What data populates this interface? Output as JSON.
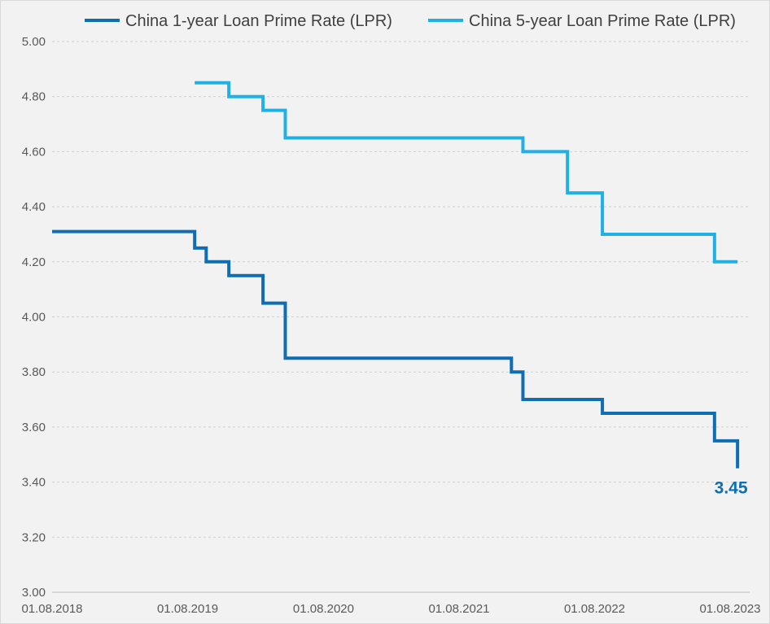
{
  "chart_data": {
    "type": "line",
    "step": true,
    "title": "",
    "xlabel": "",
    "ylabel": "",
    "ylim": [
      3.0,
      5.0
    ],
    "yticks": [
      3.0,
      3.2,
      3.4,
      3.6,
      3.8,
      4.0,
      4.2,
      4.4,
      4.6,
      4.8,
      5.0
    ],
    "ytick_labels": [
      "3.00",
      "3.20",
      "3.40",
      "3.60",
      "3.80",
      "4.00",
      "4.20",
      "4.40",
      "4.60",
      "4.80",
      "5.00"
    ],
    "xlim": [
      "2018-08-01",
      "2023-08-01"
    ],
    "xticks": [
      "2018-08-01",
      "2019-08-01",
      "2020-08-01",
      "2021-08-01",
      "2022-08-01",
      "2023-08-01"
    ],
    "xtick_labels": [
      "01.08.2018",
      "01.08.2019",
      "01.08.2020",
      "01.08.2021",
      "01.08.2022",
      "01.08.2023"
    ],
    "grid": true,
    "legend_position": "top",
    "series": [
      {
        "name": "China 1-year Loan Prime Rate (LPR)",
        "color": "#0f6db3",
        "points": [
          [
            "2018-08-01",
            4.31
          ],
          [
            "2019-08-20",
            4.25
          ],
          [
            "2019-09-20",
            4.2
          ],
          [
            "2019-11-20",
            4.15
          ],
          [
            "2020-02-20",
            4.05
          ],
          [
            "2020-04-20",
            3.85
          ],
          [
            "2021-12-20",
            3.8
          ],
          [
            "2022-01-20",
            3.7
          ],
          [
            "2022-08-22",
            3.65
          ],
          [
            "2023-06-20",
            3.55
          ],
          [
            "2023-08-21",
            3.45
          ]
        ],
        "end_date": "2023-08-21",
        "end_label": "3.45"
      },
      {
        "name": "China 5-year Loan Prime Rate (LPR)",
        "color": "#1fb0e6",
        "points": [
          [
            "2019-08-20",
            4.85
          ],
          [
            "2019-11-20",
            4.8
          ],
          [
            "2020-02-20",
            4.75
          ],
          [
            "2020-04-20",
            4.65
          ],
          [
            "2022-01-20",
            4.6
          ],
          [
            "2022-05-20",
            4.45
          ],
          [
            "2022-08-22",
            4.3
          ],
          [
            "2023-06-20",
            4.2
          ]
        ],
        "end_date": "2023-08-21"
      }
    ]
  }
}
